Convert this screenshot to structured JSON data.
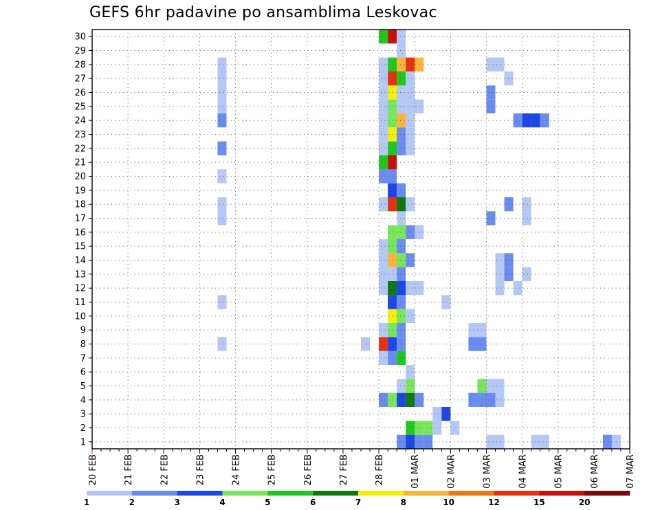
{
  "chart_data": {
    "type": "heatmap",
    "title": "GEFS 6hr padavine po ansamblima Leskovac",
    "x_tick_labels": [
      "20 FEB",
      "21 FEB",
      "22 FEB",
      "23 FEB",
      "24 FEB",
      "25 FEB",
      "26 FEB",
      "27 FEB",
      "28 FEB",
      "01 MAR",
      "02 MAR",
      "03 MAR",
      "04 MAR",
      "05 MAR",
      "06 MAR",
      "07 MAR"
    ],
    "y_tick_labels": [
      "1",
      "2",
      "3",
      "4",
      "5",
      "6",
      "7",
      "8",
      "9",
      "10",
      "11",
      "12",
      "13",
      "14",
      "15",
      "16",
      "17",
      "18",
      "19",
      "20",
      "21",
      "22",
      "23",
      "24",
      "25",
      "26",
      "27",
      "28",
      "29",
      "30"
    ],
    "x_unit": "days since 20 FEB (6h steps)",
    "xlim": [
      0,
      15
    ],
    "ylim": [
      0.5,
      30.5
    ],
    "grid": true,
    "colorbar": {
      "labels": [
        "1",
        "2",
        "3",
        "4",
        "5",
        "6",
        "7",
        "8",
        "10",
        "12",
        "15",
        "20"
      ],
      "colors": [
        "#b4c8f5",
        "#6a8cf0",
        "#1e46e6",
        "#78e65a",
        "#1ec81e",
        "#0f780f",
        "#f0f00a",
        "#fab43c",
        "#f07814",
        "#e6320f",
        "#c80f0f",
        "#780a0a"
      ]
    },
    "cell_color_indices_by_member": {
      "1": [
        [
          8.5,
          1
        ],
        [
          8.75,
          2
        ],
        [
          9.0,
          1
        ],
        [
          9.25,
          1
        ],
        [
          11.0,
          0
        ],
        [
          11.25,
          0
        ],
        [
          12.25,
          0
        ],
        [
          12.5,
          0
        ],
        [
          14.25,
          1
        ],
        [
          14.5,
          0
        ],
        [
          15.0,
          0
        ],
        [
          16.75,
          0
        ],
        [
          17.0,
          0
        ],
        [
          17.25,
          0
        ],
        [
          17.75,
          0
        ],
        [
          18.75,
          1
        ],
        [
          25.0,
          3
        ],
        [
          26.5,
          2
        ],
        [
          26.75,
          2
        ],
        [
          27.0,
          0
        ],
        [
          27.25,
          2
        ],
        [
          27.5,
          0
        ],
        [
          27.75,
          0
        ],
        [
          28.0,
          1
        ]
      ],
      "2": [
        [
          8.75,
          4
        ],
        [
          9.0,
          3
        ],
        [
          9.25,
          3
        ],
        [
          9.5,
          0
        ],
        [
          10.0,
          0
        ]
      ],
      "3": [
        [
          9.5,
          0
        ],
        [
          9.75,
          2
        ],
        [
          16.75,
          0
        ],
        [
          17.0,
          0
        ]
      ],
      "4": [
        [
          8.0,
          1
        ],
        [
          8.25,
          3
        ],
        [
          8.5,
          2
        ],
        [
          8.75,
          5
        ],
        [
          9.0,
          1
        ],
        [
          10.5,
          1
        ],
        [
          10.75,
          1
        ],
        [
          11.0,
          1
        ],
        [
          11.25,
          0
        ],
        [
          19.0,
          0
        ],
        [
          19.25,
          0
        ],
        [
          26.5,
          0
        ],
        [
          26.75,
          3
        ],
        [
          27.0,
          7
        ],
        [
          27.25,
          8
        ],
        [
          27.5,
          7
        ],
        [
          27.75,
          8
        ]
      ],
      "5": [
        [
          8.5,
          0
        ],
        [
          8.75,
          3
        ],
        [
          10.75,
          3
        ],
        [
          11.0,
          0
        ],
        [
          11.25,
          0
        ]
      ],
      "6": [
        [
          8.75,
          0
        ],
        [
          16.5,
          0
        ],
        [
          16.75,
          2
        ],
        [
          17.0,
          0
        ],
        [
          17.25,
          0
        ]
      ],
      "7": [
        [
          8.0,
          0
        ],
        [
          8.25,
          1
        ],
        [
          8.5,
          4
        ],
        [
          16.75,
          4
        ],
        [
          17.0,
          2
        ],
        [
          17.25,
          3
        ],
        [
          17.5,
          2
        ],
        [
          17.75,
          2
        ],
        [
          18.0,
          0
        ],
        [
          18.25,
          0
        ],
        [
          18.5,
          1
        ]
      ],
      "8": [
        [
          3.5,
          0
        ],
        [
          7.5,
          0
        ],
        [
          8.0,
          9
        ],
        [
          8.25,
          2
        ],
        [
          8.5,
          1
        ],
        [
          10.5,
          1
        ],
        [
          10.75,
          1
        ],
        [
          16.75,
          0
        ]
      ],
      "9": [
        [
          8.0,
          0
        ],
        [
          8.25,
          3
        ],
        [
          8.5,
          1
        ],
        [
          10.5,
          0
        ],
        [
          10.75,
          0
        ]
      ],
      "10": [
        [
          8.25,
          6
        ],
        [
          8.5,
          3
        ],
        [
          8.75,
          0
        ],
        [
          17.25,
          0
        ],
        [
          17.75,
          0
        ],
        [
          18.0,
          0
        ]
      ],
      "11": [
        [
          3.5,
          0
        ],
        [
          8.25,
          2
        ],
        [
          8.5,
          1
        ],
        [
          9.75,
          0
        ],
        [
          19.5,
          1
        ]
      ],
      "12": [
        [
          8.0,
          0
        ],
        [
          8.25,
          5
        ],
        [
          8.5,
          2
        ],
        [
          8.75,
          0
        ],
        [
          9.0,
          0
        ],
        [
          11.25,
          0
        ],
        [
          11.75,
          0
        ],
        [
          20.0,
          2
        ],
        [
          27.25,
          9
        ],
        [
          30.0,
          6
        ]
      ],
      "13": [
        [
          8.0,
          0
        ],
        [
          8.25,
          0
        ],
        [
          8.5,
          1
        ],
        [
          11.25,
          0
        ],
        [
          11.5,
          1
        ],
        [
          12.0,
          0
        ],
        [
          17.0,
          0
        ],
        [
          17.25,
          0
        ],
        [
          18.75,
          0
        ],
        [
          19.0,
          0
        ]
      ],
      "14": [
        [
          8.0,
          0
        ],
        [
          8.25,
          7
        ],
        [
          8.5,
          3
        ],
        [
          8.75,
          1
        ],
        [
          11.25,
          0
        ],
        [
          11.5,
          1
        ],
        [
          17.5,
          3
        ],
        [
          18.0,
          0
        ],
        [
          23.75,
          1
        ],
        [
          25.25,
          3
        ],
        [
          25.5,
          2
        ],
        [
          25.75,
          1
        ]
      ],
      "15": [
        [
          8.0,
          0
        ],
        [
          8.25,
          3
        ],
        [
          8.5,
          1
        ],
        [
          17.5,
          3
        ],
        [
          23.75,
          1
        ],
        [
          25.25,
          3
        ],
        [
          25.5,
          2
        ],
        [
          25.75,
          1
        ]
      ],
      "16": [
        [
          8.25,
          3
        ],
        [
          8.5,
          3
        ],
        [
          8.75,
          1
        ],
        [
          9.0,
          0
        ],
        [
          16.75,
          0
        ],
        [
          17.0,
          4
        ],
        [
          17.25,
          4
        ],
        [
          17.5,
          3
        ],
        [
          17.75,
          2
        ],
        [
          18.0,
          0
        ],
        [
          18.5,
          0
        ],
        [
          20.0,
          2
        ],
        [
          20.25,
          2
        ],
        [
          21.0,
          1
        ],
        [
          21.5,
          1
        ],
        [
          22.0,
          1
        ],
        [
          22.25,
          3
        ],
        [
          22.5,
          4
        ],
        [
          22.75,
          1
        ],
        [
          25.5,
          1
        ],
        [
          27.25,
          0
        ],
        [
          28.25,
          1
        ],
        [
          29.25,
          1
        ],
        [
          29.5,
          1
        ]
      ],
      "17": [
        [
          3.5,
          0
        ],
        [
          8.5,
          0
        ],
        [
          11.0,
          1
        ],
        [
          12.0,
          0
        ],
        [
          22.0,
          1
        ],
        [
          22.25,
          2
        ],
        [
          22.5,
          4
        ],
        [
          22.75,
          8
        ],
        [
          27.25,
          4
        ],
        [
          27.5,
          4
        ],
        [
          28.0,
          0
        ]
      ],
      "18": [
        [
          3.5,
          0
        ],
        [
          8.0,
          0
        ],
        [
          8.25,
          9
        ],
        [
          8.5,
          5
        ],
        [
          8.75,
          0
        ],
        [
          11.5,
          1
        ],
        [
          12.0,
          0
        ],
        [
          27.25,
          4
        ],
        [
          27.5,
          4
        ],
        [
          28.0,
          0
        ]
      ],
      "19": [
        [
          8.25,
          2
        ],
        [
          8.5,
          1
        ]
      ],
      "20": [
        [
          3.5,
          0
        ],
        [
          8.0,
          1
        ],
        [
          8.25,
          1
        ],
        [
          16.5,
          0
        ],
        [
          16.75,
          5
        ],
        [
          17.0,
          1
        ],
        [
          17.25,
          1
        ],
        [
          17.5,
          0
        ]
      ],
      "21": [
        [
          8.0,
          4
        ],
        [
          8.25,
          10
        ],
        [
          18.0,
          0
        ]
      ],
      "22": [
        [
          3.5,
          1
        ],
        [
          8.0,
          0
        ],
        [
          8.25,
          4
        ],
        [
          8.5,
          1
        ],
        [
          8.75,
          0
        ],
        [
          16.75,
          1
        ],
        [
          17.0,
          1
        ],
        [
          17.25,
          0
        ],
        [
          17.75,
          0
        ],
        [
          28.0,
          0
        ],
        [
          28.25,
          0
        ]
      ],
      "23": [
        [
          8.0,
          0
        ],
        [
          8.25,
          6
        ],
        [
          8.5,
          1
        ],
        [
          8.75,
          0
        ]
      ],
      "24": [
        [
          3.5,
          1
        ],
        [
          8.0,
          0
        ],
        [
          8.25,
          3
        ],
        [
          8.5,
          7
        ],
        [
          8.75,
          0
        ],
        [
          11.75,
          1
        ],
        [
          12.0,
          2
        ],
        [
          12.25,
          2
        ],
        [
          12.5,
          1
        ],
        [
          23.25,
          1
        ],
        [
          23.75,
          0
        ],
        [
          24.0,
          0
        ],
        [
          28.25,
          2
        ],
        [
          28.5,
          1
        ]
      ],
      "25": [
        [
          3.5,
          0
        ],
        [
          8.0,
          0
        ],
        [
          8.25,
          3
        ],
        [
          8.5,
          0
        ],
        [
          8.75,
          0
        ],
        [
          9.0,
          0
        ],
        [
          11.0,
          1
        ],
        [
          16.25,
          0
        ],
        [
          16.5,
          0
        ],
        [
          18.25,
          0
        ],
        [
          18.5,
          0
        ],
        [
          25.25,
          1
        ],
        [
          25.5,
          3
        ],
        [
          25.75,
          3
        ]
      ],
      "26": [
        [
          3.5,
          0
        ],
        [
          8.0,
          0
        ],
        [
          8.25,
          6
        ],
        [
          8.5,
          0
        ],
        [
          8.75,
          0
        ],
        [
          11.0,
          1
        ],
        [
          24.75,
          5
        ],
        [
          25.75,
          3
        ],
        [
          26.0,
          0
        ]
      ],
      "27": [
        [
          3.5,
          0
        ],
        [
          8.0,
          0
        ],
        [
          8.25,
          9
        ],
        [
          8.5,
          4
        ],
        [
          8.75,
          0
        ],
        [
          11.5,
          0
        ],
        [
          15.75,
          2
        ],
        [
          16.0,
          1
        ],
        [
          16.25,
          1
        ],
        [
          24.5,
          0
        ]
      ],
      "28": [
        [
          3.5,
          0
        ],
        [
          8.0,
          0
        ],
        [
          8.25,
          4
        ],
        [
          8.5,
          7
        ],
        [
          8.75,
          9
        ],
        [
          9.0,
          7
        ],
        [
          11.0,
          0
        ],
        [
          11.25,
          0
        ],
        [
          16.5,
          0
        ],
        [
          16.75,
          0
        ],
        [
          17.0,
          1
        ],
        [
          17.25,
          1
        ],
        [
          25.75,
          0
        ]
      ],
      "29": [
        [
          8.5,
          0
        ],
        [
          16.5,
          2
        ],
        [
          16.75,
          1
        ],
        [
          17.0,
          3
        ],
        [
          17.25,
          2
        ]
      ],
      "30": [
        [
          8.0,
          4
        ],
        [
          8.25,
          10
        ],
        [
          8.5,
          0
        ],
        [
          23.5,
          0
        ],
        [
          23.75,
          0
        ]
      ]
    }
  }
}
